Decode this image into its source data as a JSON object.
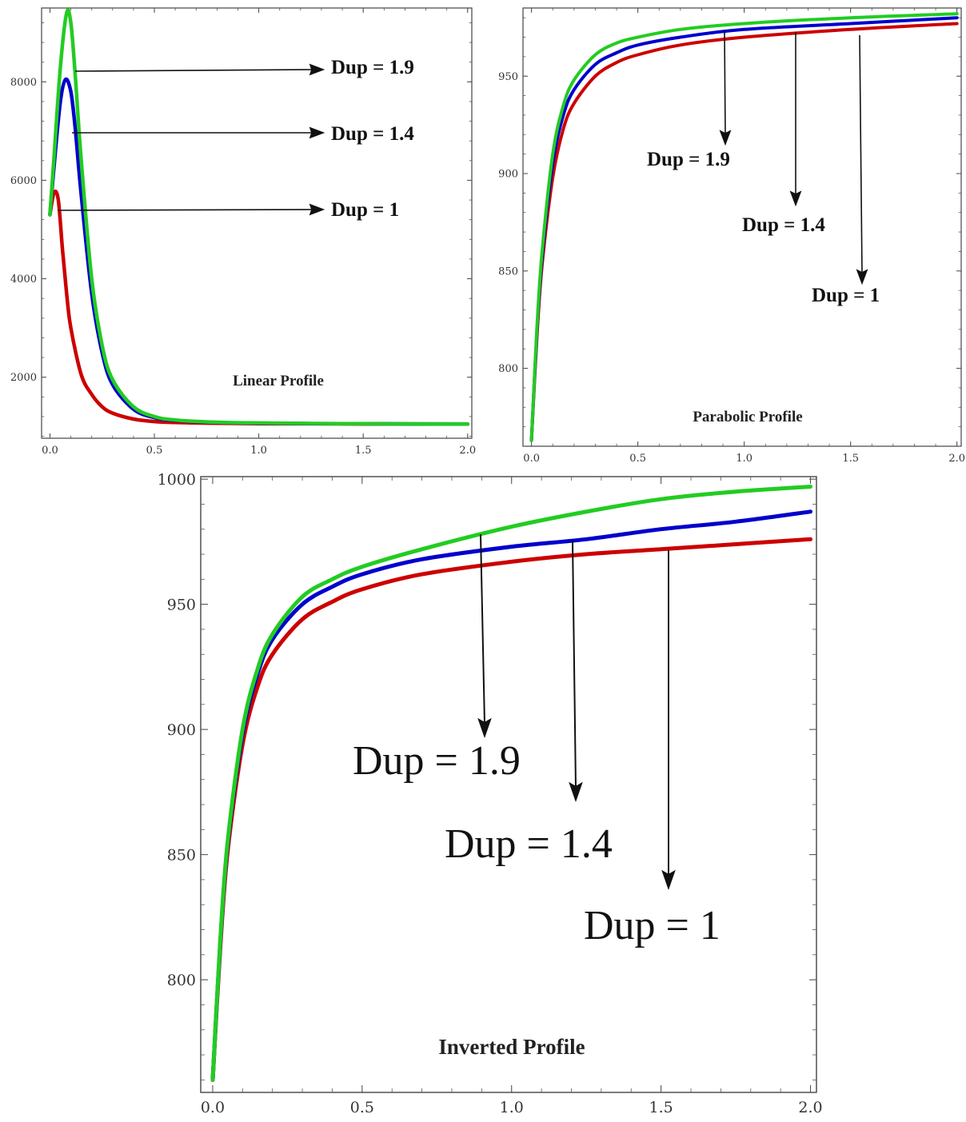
{
  "chart_data": [
    {
      "type": "line",
      "title": "Linear Profile",
      "xlabel": "",
      "ylabel": "",
      "xlim": [
        -0.04,
        2.02
      ],
      "ylim": [
        760,
        9500
      ],
      "xticks": [
        "0.0",
        "0.5",
        "1.0",
        "1.5",
        "2.0"
      ],
      "yticks": [
        "2000",
        "4000",
        "6000",
        "8000"
      ],
      "series": [
        {
          "color": "#22cc22",
          "x": [
            0,
            0.02,
            0.05,
            0.08,
            0.1,
            0.12,
            0.15,
            0.2,
            0.25,
            0.3,
            0.4,
            0.5,
            0.6,
            0.8,
            1.0,
            1.25,
            1.5,
            1.75,
            2.0
          ],
          "y": [
            5300,
            6500,
            8300,
            9400,
            9200,
            8200,
            6400,
            4000,
            2650,
            1950,
            1400,
            1200,
            1130,
            1085,
            1070,
            1060,
            1055,
            1052,
            1050
          ]
        },
        {
          "color": "#0000cc",
          "x": [
            0,
            0.02,
            0.05,
            0.075,
            0.1,
            0.12,
            0.15,
            0.2,
            0.25,
            0.3,
            0.4,
            0.5,
            0.6,
            0.8,
            1.0,
            1.25,
            1.5,
            1.75,
            2.0
          ],
          "y": [
            5300,
            6300,
            7600,
            8050,
            7800,
            7100,
            5700,
            3700,
            2500,
            1850,
            1350,
            1180,
            1120,
            1080,
            1065,
            1058,
            1054,
            1051,
            1049
          ]
        },
        {
          "color": "#cc0000",
          "x": [
            0,
            0.02,
            0.04,
            0.06,
            0.08,
            0.1,
            0.15,
            0.2,
            0.25,
            0.3,
            0.4,
            0.5,
            0.6,
            0.8,
            1.0,
            1.25,
            1.5,
            1.75,
            2.0
          ],
          "y": [
            5300,
            5750,
            5600,
            4600,
            3700,
            3000,
            2050,
            1650,
            1400,
            1270,
            1150,
            1100,
            1080,
            1065,
            1058,
            1054,
            1051,
            1049,
            1048
          ]
        }
      ],
      "annotations": [
        "Dup = 1.9",
        "Dup = 1.4",
        "Dup = 1"
      ]
    },
    {
      "type": "line",
      "title": "Parabolic Profile",
      "xlabel": "",
      "ylabel": "",
      "xlim": [
        -0.04,
        2.02
      ],
      "ylim": [
        760,
        985
      ],
      "xticks": [
        "0.0",
        "0.5",
        "1.0",
        "1.5",
        "2.0"
      ],
      "yticks": [
        "800",
        "850",
        "900",
        "950"
      ],
      "series": [
        {
          "color": "#22cc22",
          "x": [
            0,
            0.025,
            0.05,
            0.1,
            0.15,
            0.2,
            0.3,
            0.4,
            0.5,
            0.7,
            1.0,
            1.5,
            2.0
          ],
          "y": [
            763,
            820,
            860,
            910,
            935,
            948,
            961,
            967,
            970,
            974,
            977,
            980,
            982
          ]
        },
        {
          "color": "#0000cc",
          "x": [
            0,
            0.025,
            0.05,
            0.1,
            0.15,
            0.2,
            0.3,
            0.4,
            0.5,
            0.7,
            1.0,
            1.5,
            2.0
          ],
          "y": [
            763,
            818,
            857,
            905,
            930,
            943,
            956,
            962,
            966,
            970,
            974,
            977,
            980
          ]
        },
        {
          "color": "#cc0000",
          "x": [
            0,
            0.025,
            0.05,
            0.1,
            0.15,
            0.2,
            0.3,
            0.4,
            0.5,
            0.7,
            1.0,
            1.5,
            2.0
          ],
          "y": [
            763,
            815,
            853,
            898,
            923,
            936,
            950,
            957,
            961,
            966,
            970,
            974,
            977
          ]
        }
      ],
      "annotations": [
        "Dup = 1.9",
        "Dup = 1.4",
        "Dup = 1"
      ]
    },
    {
      "type": "line",
      "title": "Inverted Profile",
      "xlabel": "",
      "ylabel": "",
      "xlim": [
        -0.04,
        2.02
      ],
      "ylim": [
        755,
        1001
      ],
      "xticks": [
        "0.0",
        "0.5",
        "1.0",
        "1.5",
        "2.0"
      ],
      "yticks": [
        "800",
        "850",
        "900",
        "950",
        "1000"
      ],
      "series": [
        {
          "color": "#22cc22",
          "x": [
            0,
            0.025,
            0.05,
            0.1,
            0.15,
            0.2,
            0.3,
            0.4,
            0.5,
            0.7,
            1.0,
            1.25,
            1.5,
            1.75,
            2.0
          ],
          "y": [
            760,
            815,
            855,
            900,
            924,
            938,
            953,
            960,
            965,
            972,
            981,
            987,
            992,
            995,
            997
          ]
        },
        {
          "color": "#0000cc",
          "x": [
            0,
            0.025,
            0.05,
            0.1,
            0.15,
            0.2,
            0.3,
            0.4,
            0.5,
            0.7,
            1.0,
            1.25,
            1.5,
            1.75,
            2.0
          ],
          "y": [
            760,
            814,
            854,
            898,
            922,
            936,
            950,
            957,
            962,
            968,
            973,
            976,
            980,
            983,
            987
          ]
        },
        {
          "color": "#cc0000",
          "x": [
            0,
            0.025,
            0.05,
            0.1,
            0.15,
            0.2,
            0.3,
            0.4,
            0.5,
            0.7,
            1.0,
            1.25,
            1.5,
            1.75,
            2.0
          ],
          "y": [
            760,
            812,
            851,
            894,
            917,
            930,
            944,
            951,
            956,
            962,
            967,
            970,
            972,
            974,
            976
          ]
        }
      ],
      "annotations": [
        "Dup = 1.9",
        "Dup = 1.4",
        "Dup = 1"
      ]
    }
  ]
}
